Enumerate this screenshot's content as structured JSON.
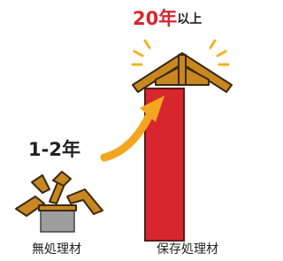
{
  "highlight": {
    "years": "20年",
    "suffix": "以上"
  },
  "untreated": {
    "years": "1-2年",
    "label": "無処理材"
  },
  "treated": {
    "label": "保存処理材"
  }
}
